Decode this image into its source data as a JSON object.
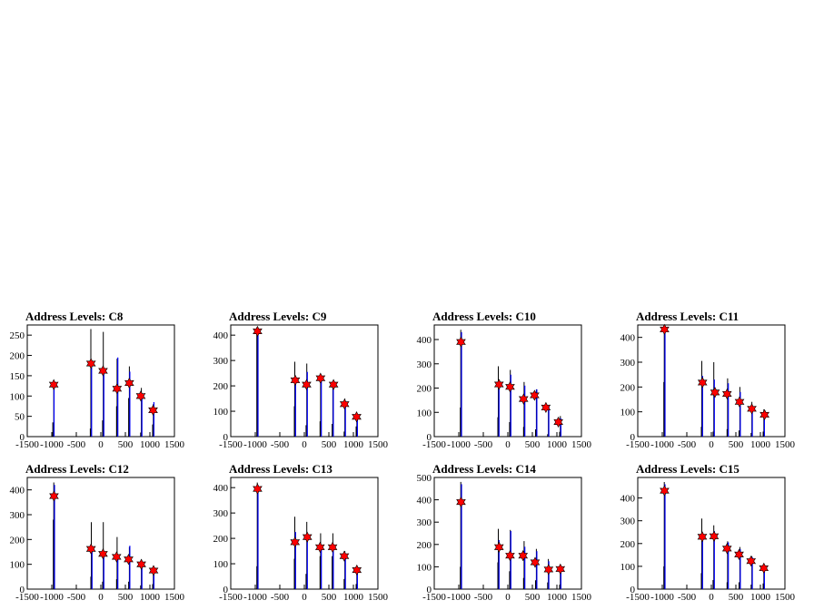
{
  "chart_data": [
    {
      "type": "bar",
      "title": "Address Levels: C8",
      "xlim": [
        -1500,
        1500
      ],
      "ylim": [
        0,
        275
      ],
      "x_ticks": [
        "-1500",
        "-1000",
        "-500",
        "0",
        "500",
        "1000",
        "1500"
      ],
      "y_ticks": [
        "0",
        "50",
        "100",
        "150",
        "200",
        "250"
      ],
      "y_tick_values": [
        0,
        50,
        100,
        150,
        200,
        250
      ],
      "series": [
        {
          "color": "#000000",
          "x": [
            -970,
            -950,
            -205,
            -195,
            45,
            60,
            330,
            340,
            575,
            590,
            820,
            835,
            1065,
            1080
          ],
          "values": [
            35,
            130,
            20,
            265,
            40,
            258,
            75,
            192,
            95,
            173,
            10,
            120,
            30,
            80
          ]
        },
        {
          "color": "#0000ff",
          "x": [
            -965,
            -200,
            50,
            335,
            580,
            825,
            1070
          ],
          "values": [
            130,
            180,
            165,
            195,
            160,
            105,
            85
          ]
        }
      ],
      "markers": {
        "color": "#ff0000",
        "x": [
          -960,
          -200,
          45,
          330,
          580,
          815,
          1065
        ],
        "values": [
          128,
          180,
          162,
          118,
          132,
          100,
          65
        ]
      }
    },
    {
      "type": "bar",
      "title": "Address Levels: C9",
      "xlim": [
        -1500,
        1500
      ],
      "ylim": [
        0,
        440
      ],
      "x_ticks": [
        "-1500",
        "-1000",
        "-500",
        "0",
        "500",
        "1000",
        "1500"
      ],
      "y_ticks": [
        "0",
        "100",
        "200",
        "300",
        "400"
      ],
      "y_tick_values": [
        0,
        100,
        200,
        300,
        400
      ],
      "series": [
        {
          "color": "#000000",
          "x": [
            -960,
            -950,
            -195,
            -185,
            45,
            60,
            330,
            340,
            575,
            590,
            820,
            835,
            1065,
            1080
          ],
          "values": [
            430,
            400,
            120,
            295,
            45,
            288,
            60,
            235,
            50,
            218,
            20,
            150,
            40,
            90
          ]
        },
        {
          "color": "#0000ff",
          "x": [
            -955,
            -190,
            50,
            335,
            580,
            825,
            1070
          ],
          "values": [
            415,
            230,
            255,
            240,
            205,
            140,
            85
          ]
        }
      ],
      "markers": {
        "color": "#ff0000",
        "x": [
          -955,
          -185,
          45,
          330,
          595,
          820,
          1065
        ],
        "values": [
          415,
          222,
          205,
          230,
          205,
          128,
          78
        ]
      }
    },
    {
      "type": "bar",
      "title": "Address Levels: C10",
      "xlim": [
        -1500,
        1500
      ],
      "ylim": [
        0,
        460
      ],
      "x_ticks": [
        "-1500",
        "-1000",
        "-500",
        "0",
        "500",
        "1000",
        "1500"
      ],
      "y_ticks": [
        "0",
        "100",
        "200",
        "300",
        "400"
      ],
      "y_tick_values": [
        0,
        100,
        200,
        300,
        400
      ],
      "series": [
        {
          "color": "#000000",
          "x": [
            -960,
            -950,
            -195,
            -185,
            45,
            60,
            330,
            340,
            575,
            590,
            820,
            835,
            1065,
            1080
          ],
          "values": [
            120,
            440,
            80,
            290,
            60,
            275,
            40,
            225,
            30,
            195,
            10,
            125,
            20,
            85
          ]
        },
        {
          "color": "#0000ff",
          "x": [
            -955,
            -190,
            50,
            335,
            580,
            825,
            1070
          ],
          "values": [
            430,
            230,
            255,
            210,
            195,
            130,
            75
          ]
        }
      ],
      "markers": {
        "color": "#ff0000",
        "x": [
          -955,
          -180,
          45,
          320,
          545,
          775,
          1030
        ],
        "values": [
          390,
          215,
          205,
          155,
          170,
          120,
          60
        ]
      }
    },
    {
      "type": "bar",
      "title": "Address Levels: C11",
      "xlim": [
        -1500,
        1500
      ],
      "ylim": [
        0,
        450
      ],
      "x_ticks": [
        "-1500",
        "-1000",
        "-500",
        "0",
        "500",
        "1000",
        "1500"
      ],
      "y_ticks": [
        "0",
        "100",
        "200",
        "300",
        "400"
      ],
      "y_tick_values": [
        0,
        100,
        200,
        300,
        400
      ],
      "series": [
        {
          "color": "#000000",
          "x": [
            -960,
            -950,
            -195,
            -185,
            45,
            60,
            330,
            340,
            575,
            590,
            820,
            835,
            1065,
            1080
          ],
          "values": [
            220,
            440,
            40,
            305,
            20,
            300,
            30,
            235,
            25,
            200,
            15,
            140,
            20,
            110
          ]
        },
        {
          "color": "#0000ff",
          "x": [
            -955,
            -190,
            50,
            335,
            580,
            825,
            1070
          ],
          "values": [
            435,
            245,
            230,
            215,
            180,
            125,
            95
          ]
        }
      ],
      "markers": {
        "color": "#ff0000",
        "x": [
          -955,
          -180,
          75,
          320,
          575,
          825,
          1085
        ],
        "values": [
          432,
          218,
          178,
          172,
          140,
          112,
          88
        ]
      }
    },
    {
      "type": "bar",
      "title": "Address Levels: C12",
      "xlim": [
        -1500,
        1500
      ],
      "ylim": [
        0,
        450
      ],
      "x_ticks": [
        "-1500",
        "-1000",
        "-500",
        "0",
        "500",
        "1000",
        "1500"
      ],
      "y_ticks": [
        "0",
        "100",
        "200",
        "300",
        "400"
      ],
      "y_tick_values": [
        0,
        100,
        200,
        300,
        400
      ],
      "series": [
        {
          "color": "#000000",
          "x": [
            -960,
            -950,
            -195,
            -185,
            45,
            60,
            330,
            340,
            575,
            590,
            820,
            835,
            1065,
            1080
          ],
          "values": [
            280,
            430,
            50,
            270,
            30,
            270,
            40,
            210,
            30,
            170,
            15,
            120,
            20,
            85
          ]
        },
        {
          "color": "#0000ff",
          "x": [
            -955,
            -190,
            50,
            335,
            580,
            825,
            1070
          ],
          "values": [
            420,
            165,
            150,
            140,
            175,
            110,
            80
          ]
        }
      ],
      "markers": {
        "color": "#ff0000",
        "x": [
          -955,
          -200,
          45,
          320,
          565,
          825,
          1075
        ],
        "values": [
          375,
          162,
          142,
          130,
          120,
          100,
          75
        ]
      }
    },
    {
      "type": "bar",
      "title": "Address Levels: C13",
      "xlim": [
        -1500,
        1500
      ],
      "ylim": [
        0,
        440
      ],
      "x_ticks": [
        "-1500",
        "-1000",
        "-500",
        "0",
        "500",
        "1000",
        "1500"
      ],
      "y_ticks": [
        "0",
        "100",
        "200",
        "300",
        "400"
      ],
      "y_tick_values": [
        0,
        100,
        200,
        300,
        400
      ],
      "series": [
        {
          "color": "#000000",
          "x": [
            -960,
            -950,
            -195,
            -185,
            45,
            60,
            330,
            340,
            575,
            590,
            820,
            835,
            1065,
            1080
          ],
          "values": [
            90,
            420,
            120,
            285,
            60,
            265,
            130,
            220,
            130,
            220,
            40,
            150,
            20,
            85
          ]
        },
        {
          "color": "#0000ff",
          "x": [
            -955,
            -190,
            50,
            335,
            580,
            825,
            1070
          ],
          "values": [
            410,
            225,
            215,
            170,
            175,
            135,
            80
          ]
        }
      ],
      "markers": {
        "color": "#ff0000",
        "x": [
          -955,
          -190,
          60,
          320,
          575,
          815,
          1070
        ],
        "values": [
          395,
          185,
          205,
          165,
          165,
          130,
          75
        ]
      }
    },
    {
      "type": "bar",
      "title": "Address Levels: C14",
      "xlim": [
        -1500,
        1500
      ],
      "ylim": [
        0,
        500
      ],
      "x_ticks": [
        "-1500",
        "-1000",
        "-500",
        "0",
        "500",
        "1000",
        "1500"
      ],
      "y_ticks": [
        "0",
        "100",
        "200",
        "300",
        "400",
        "500"
      ],
      "y_tick_values": [
        0,
        100,
        200,
        300,
        400,
        500
      ],
      "series": [
        {
          "color": "#000000",
          "x": [
            -960,
            -950,
            -195,
            -185,
            45,
            60,
            330,
            340,
            575,
            590,
            820,
            835,
            1065,
            1080
          ],
          "values": [
            100,
            480,
            120,
            270,
            80,
            265,
            50,
            215,
            40,
            180,
            30,
            135,
            20,
            105
          ]
        },
        {
          "color": "#0000ff",
          "x": [
            -955,
            -190,
            50,
            335,
            580,
            825,
            1070
          ],
          "values": [
            470,
            220,
            260,
            190,
            170,
            125,
            95
          ]
        }
      ],
      "markers": {
        "color": "#ff0000",
        "x": [
          -955,
          -180,
          45,
          310,
          555,
          830,
          1070
        ],
        "values": [
          390,
          188,
          150,
          150,
          120,
          88,
          90
        ]
      }
    },
    {
      "type": "bar",
      "title": "Address Levels: C15",
      "xlim": [
        -1500,
        1500
      ],
      "ylim": [
        0,
        490
      ],
      "x_ticks": [
        "-1500",
        "-1000",
        "-500",
        "0",
        "500",
        "1000",
        "1500"
      ],
      "y_ticks": [
        "0",
        "100",
        "200",
        "300",
        "400"
      ],
      "y_tick_values": [
        0,
        100,
        200,
        300,
        400
      ],
      "series": [
        {
          "color": "#000000",
          "x": [
            -960,
            -950,
            -195,
            -185,
            45,
            60,
            330,
            340,
            575,
            590,
            820,
            835,
            1065,
            1080
          ],
          "values": [
            100,
            470,
            70,
            310,
            40,
            280,
            30,
            210,
            30,
            185,
            20,
            145,
            25,
            105
          ]
        },
        {
          "color": "#0000ff",
          "x": [
            -955,
            -190,
            50,
            335,
            580,
            825,
            1070
          ],
          "values": [
            460,
            240,
            255,
            205,
            175,
            140,
            95
          ]
        }
      ],
      "markers": {
        "color": "#ff0000",
        "x": [
          -955,
          -185,
          55,
          320,
          565,
          810,
          1070
        ],
        "values": [
          432,
          230,
          232,
          178,
          152,
          123,
          92
        ]
      }
    }
  ]
}
